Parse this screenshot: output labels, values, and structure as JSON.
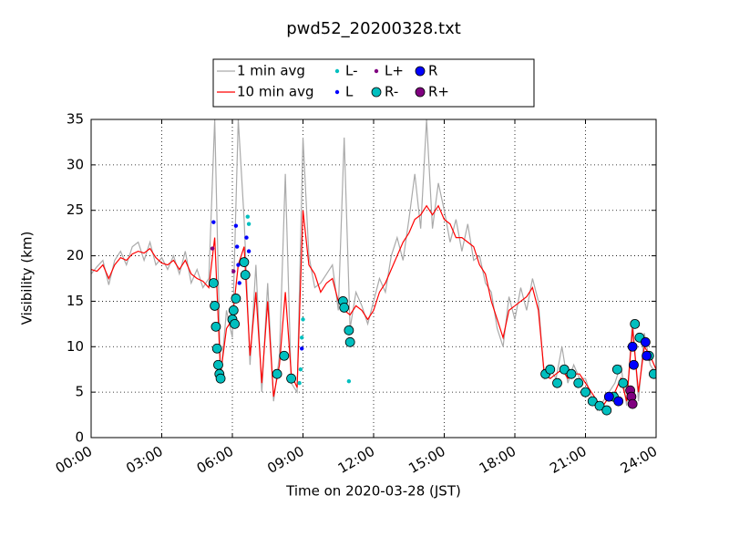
{
  "chart_data": {
    "type": "line",
    "title": "pwd52_20200328.txt",
    "x_label": "Time on 2020-03-28 (JST)",
    "y_label": "Visibility (km)",
    "xlim": [
      0,
      24
    ],
    "ylim": [
      0,
      35
    ],
    "xticks": [
      {
        "value": 0,
        "label": "00:00"
      },
      {
        "value": 3,
        "label": "03:00"
      },
      {
        "value": 6,
        "label": "06:00"
      },
      {
        "value": 9,
        "label": "09:00"
      },
      {
        "value": 12,
        "label": "12:00"
      },
      {
        "value": 15,
        "label": "15:00"
      },
      {
        "value": 18,
        "label": "18:00"
      },
      {
        "value": 21,
        "label": "21:00"
      },
      {
        "value": 24,
        "label": "24:00"
      }
    ],
    "yticks": [
      0,
      5,
      10,
      15,
      20,
      25,
      30,
      35
    ],
    "grid": true,
    "legend": "upper center",
    "x": [
      0,
      0.25,
      0.5,
      0.75,
      1,
      1.25,
      1.5,
      1.75,
      2,
      2.25,
      2.5,
      2.75,
      3,
      3.25,
      3.5,
      3.75,
      4,
      4.25,
      4.5,
      4.75,
      5,
      5.25,
      5.5,
      5.75,
      6,
      6.25,
      6.5,
      6.75,
      7,
      7.25,
      7.5,
      7.75,
      8,
      8.25,
      8.5,
      8.75,
      9,
      9.25,
      9.5,
      9.75,
      10,
      10.25,
      10.5,
      10.75,
      11,
      11.25,
      11.5,
      11.75,
      12,
      12.25,
      12.5,
      12.75,
      13,
      13.25,
      13.5,
      13.75,
      14,
      14.25,
      14.5,
      14.75,
      15,
      15.25,
      15.5,
      15.75,
      16,
      16.25,
      16.5,
      16.75,
      17,
      17.25,
      17.5,
      17.75,
      18,
      18.25,
      18.5,
      18.75,
      19,
      19.25,
      19.5,
      19.75,
      20,
      20.25,
      20.5,
      20.75,
      21,
      21.25,
      21.5,
      21.75,
      22,
      22.25,
      22.5,
      22.75,
      23,
      23.25,
      23.5,
      23.75,
      24
    ],
    "series": [
      {
        "name": "1 min avg",
        "color": "#aaaaaa",
        "values": [
          18,
          18.8,
          19.5,
          16.8,
          19.5,
          20.5,
          19,
          21,
          21.5,
          19.5,
          21.5,
          19,
          19.8,
          18.5,
          20,
          18,
          20.5,
          17,
          18.5,
          16.5,
          17.5,
          35,
          6.5,
          14,
          11,
          35,
          24,
          8,
          19,
          5,
          17,
          4,
          9,
          29,
          6,
          5,
          33,
          20,
          16.5,
          17,
          18,
          19,
          14,
          33,
          12,
          16,
          14.5,
          12.5,
          15,
          17.5,
          16,
          20,
          22,
          19.5,
          24,
          29,
          23,
          35,
          23,
          28,
          25,
          21.5,
          24,
          20.5,
          23.5,
          19.5,
          20,
          17,
          16,
          12,
          10,
          15.5,
          13,
          16.5,
          14,
          17.5,
          15,
          6.5,
          7.5,
          6.5,
          10,
          6,
          8,
          6.5,
          6.5,
          4.5,
          3,
          4,
          5,
          6,
          8,
          3.5,
          13,
          4,
          11.5,
          8,
          7
        ]
      },
      {
        "name": "10 min avg",
        "color": "#ff0000",
        "values": [
          18.5,
          18.3,
          19,
          17.5,
          19,
          19.8,
          19.5,
          20.2,
          20.5,
          20.3,
          20.8,
          19.8,
          19.2,
          19,
          19.5,
          18.5,
          19.5,
          18,
          17.5,
          17.2,
          16.5,
          22,
          7,
          12,
          13,
          19,
          21,
          9,
          16,
          6,
          15,
          4.5,
          8,
          16,
          7,
          5.5,
          25,
          19,
          18,
          16,
          17,
          17.5,
          15,
          14,
          13.5,
          14.5,
          14,
          13,
          14,
          16,
          17,
          18.5,
          20,
          21.5,
          22.5,
          24,
          24.5,
          25.5,
          24.5,
          25.5,
          24,
          23.5,
          22,
          22,
          21.5,
          21,
          19,
          18,
          15,
          13,
          11,
          14,
          14.5,
          15,
          15.5,
          16.5,
          14,
          7,
          6.5,
          7,
          7.5,
          6.5,
          7,
          7,
          6,
          5,
          4,
          3.5,
          4.5,
          5,
          6.5,
          4,
          12,
          5,
          10,
          9,
          7.5
        ]
      },
      {
        "name": "L-",
        "color": "#00bfbf",
        "marker": ".",
        "x": [
          6.65,
          6.7,
          8.85,
          8.9,
          8.95,
          9.0,
          10.95
        ],
        "values": [
          24.3,
          23.5,
          6,
          7.5,
          11,
          13,
          6.2
        ]
      },
      {
        "name": "L",
        "color": "#0000ff",
        "marker": ".",
        "x": [
          5.2,
          6.15,
          6.2,
          6.25,
          6.3,
          6.6,
          6.7,
          8.95
        ],
        "values": [
          23.7,
          23.3,
          21,
          19,
          17,
          22,
          20.5,
          9.8
        ]
      },
      {
        "name": "L+",
        "color": "#800080",
        "marker": ".",
        "x": [
          5.15,
          6.05
        ],
        "values": [
          20.8,
          18.3
        ]
      },
      {
        "name": "R-",
        "color": "#00bfbf",
        "marker": "o",
        "x": [
          5.2,
          5.25,
          5.3,
          5.35,
          5.4,
          5.45,
          5.5,
          6.0,
          6.05,
          6.1,
          6.15,
          6.5,
          6.55,
          7.9,
          8.2,
          8.5,
          10.7,
          10.75,
          10.95,
          11.0,
          19.3,
          19.5,
          19.8,
          20.1,
          20.4,
          20.7,
          21.0,
          21.3,
          21.6,
          21.9,
          22.2,
          22.35,
          22.6,
          23.1,
          23.3,
          23.7,
          23.9
        ],
        "values": [
          17,
          14.5,
          12.2,
          9.8,
          8,
          7,
          6.5,
          13,
          14,
          12.5,
          15.3,
          19.3,
          17.9,
          7,
          9,
          6.5,
          15,
          14.3,
          11.8,
          10.5,
          7,
          7.5,
          6,
          7.5,
          7,
          6,
          5,
          4,
          3.5,
          3,
          4.5,
          7.5,
          6,
          12.5,
          11,
          9,
          7
        ]
      },
      {
        "name": "R",
        "color": "#0000ff",
        "marker": "o",
        "x": [
          22.0,
          22.4,
          23.0,
          23.05,
          23.55,
          23.6
        ],
        "values": [
          4.5,
          4,
          10,
          8,
          10.5,
          9
        ]
      },
      {
        "name": "R+",
        "color": "#800080",
        "marker": "o",
        "x": [
          22.9,
          22.95,
          23.0
        ],
        "values": [
          5.2,
          4.5,
          3.7
        ]
      }
    ]
  }
}
